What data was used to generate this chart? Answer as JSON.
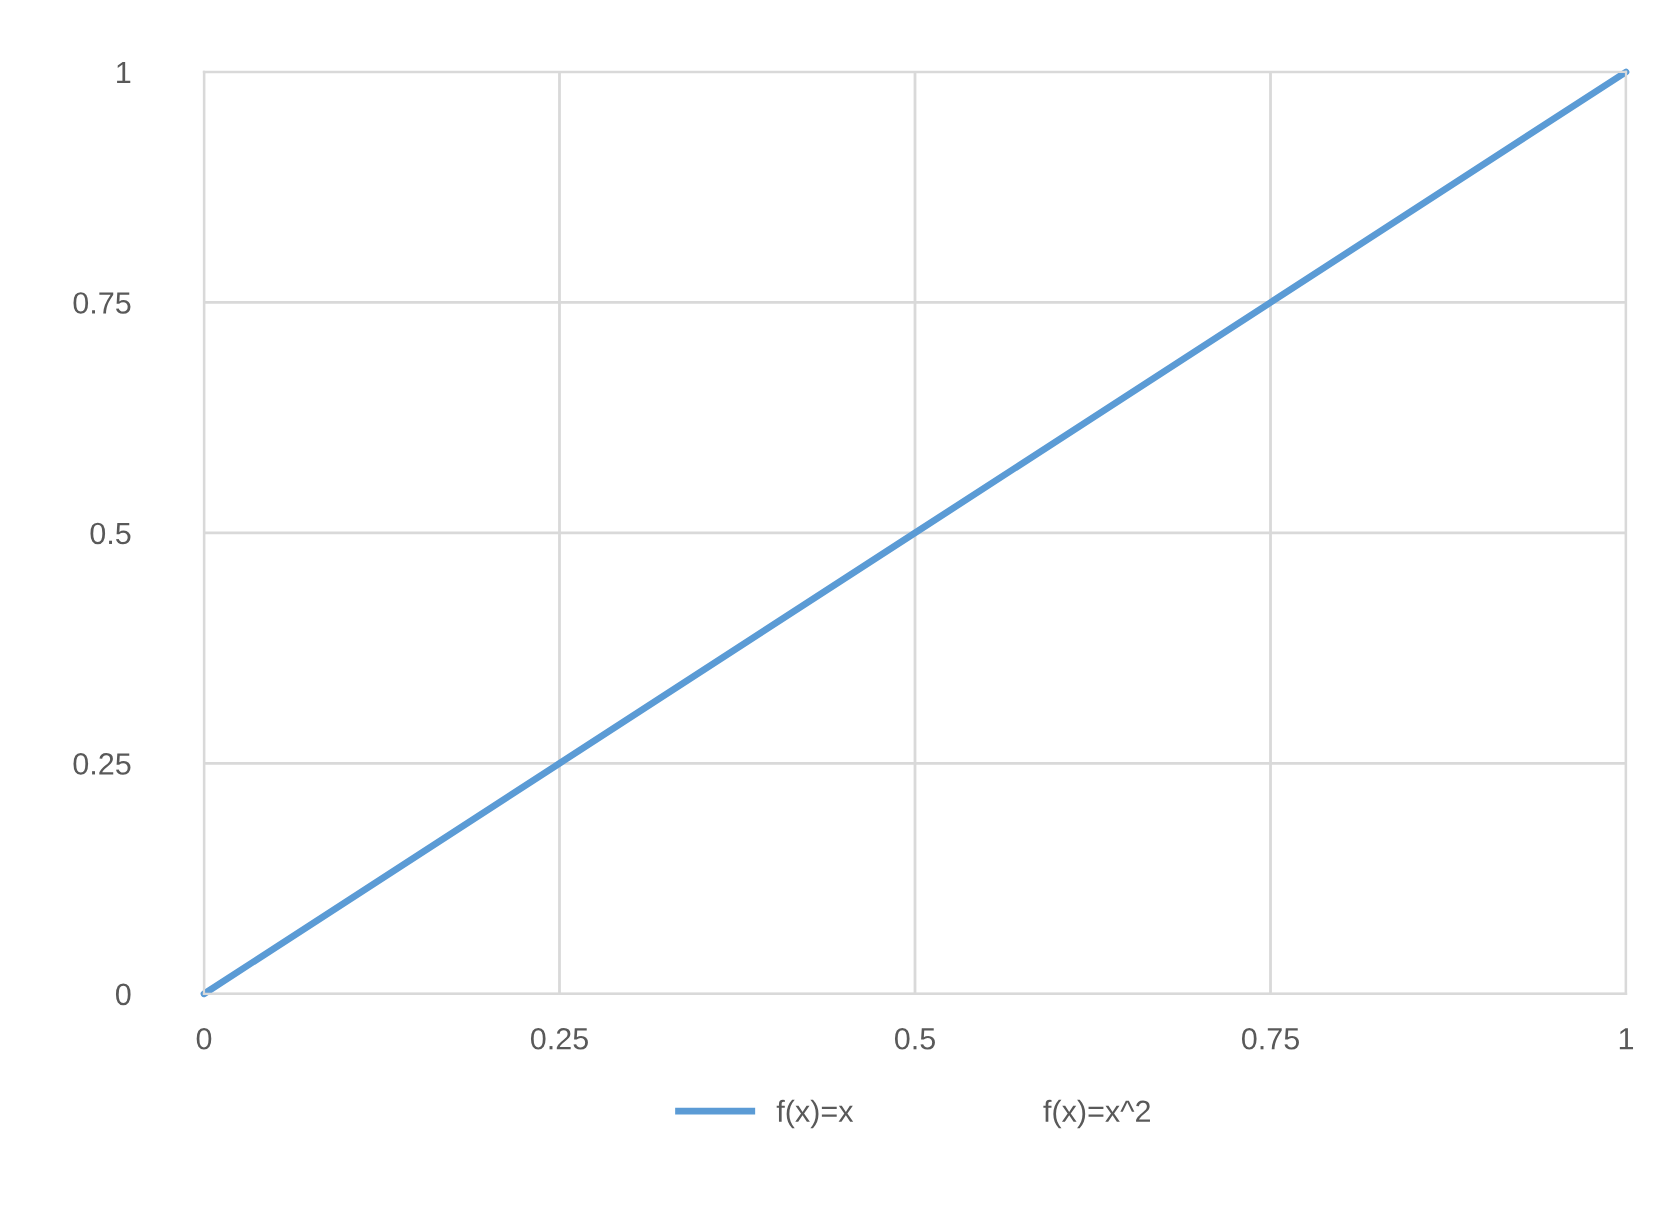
{
  "chart_data": {
    "type": "line",
    "x": [
      0,
      0.25,
      0.5,
      0.75,
      1
    ],
    "series": [
      {
        "name": "f(x)=x",
        "color": "#5b9bd5",
        "values": [
          0,
          0.25,
          0.5,
          0.75,
          1
        ]
      },
      {
        "name": "f(x)=x^2",
        "values": [
          null,
          null,
          null,
          null,
          null
        ]
      }
    ],
    "xlim": [
      0,
      1
    ],
    "ylim": [
      0,
      1
    ],
    "xticks": [
      0,
      0.25,
      0.5,
      0.75,
      1
    ],
    "yticks": [
      0,
      0.25,
      0.5,
      0.75,
      1
    ],
    "grid": true,
    "legend": "bottom",
    "marker": "none",
    "line_style": "solid"
  }
}
